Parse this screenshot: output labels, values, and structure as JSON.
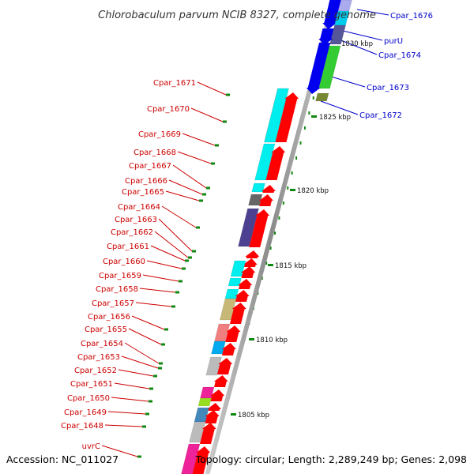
{
  "title": "Chlorobaculum parvum NCIB 8327, complete genome",
  "accession": "Accession: NC_011027",
  "summary": "Topology: circular; Length: 2,289,249 bp; Genes: 2,098",
  "scale_labels": [
    "1805 kbp",
    "1810 kbp",
    "1815 kbp",
    "1820 kbp",
    "1825 kbp",
    "1830 kbp"
  ],
  "left_genes": [
    "Cpar_1671",
    "Cpar_1670",
    "Cpar_1669",
    "Cpar_1668",
    "Cpar_1667",
    "Cpar_1666",
    "Cpar_1665",
    "Cpar_1664",
    "Cpar_1663",
    "Cpar_1662",
    "Cpar_1661",
    "Cpar_1660",
    "Cpar_1659",
    "Cpar_1658",
    "Cpar_1657",
    "Cpar_1656",
    "Cpar_1655",
    "Cpar_1654",
    "Cpar_1653",
    "Cpar_1652",
    "Cpar_1651",
    "Cpar_1650",
    "Cpar_1649",
    "Cpar_1648",
    "uvrC"
  ],
  "right_genes": [
    "Cpar_1676",
    "purU",
    "Cpar_1674",
    "Cpar_1673",
    "Cpar_1672"
  ],
  "colors": {
    "forward_strand": "#ff0000",
    "reverse_strand": "#0000ee",
    "left_label": "#cc0000",
    "right_label": "#0000cc",
    "backbone": "#888888",
    "tick": "#118811"
  }
}
